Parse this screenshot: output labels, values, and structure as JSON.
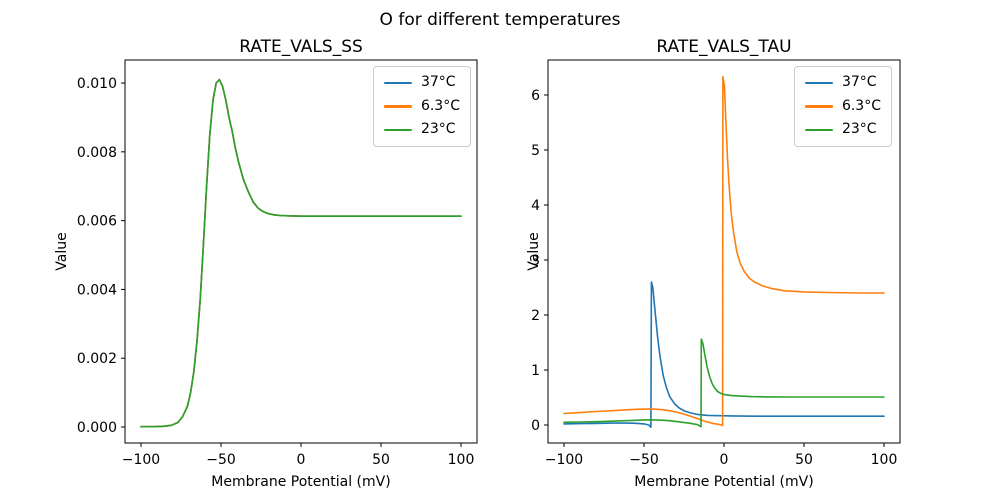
{
  "figure": {
    "suptitle": "O for different temperatures",
    "background": "#ffffff"
  },
  "colors": {
    "blue": "#1f77b4",
    "orange": "#ff7f0e",
    "green": "#2ca02c"
  },
  "chart_data": [
    {
      "type": "line",
      "title": "RATE_VALS_SS",
      "xlabel": "Membrane Potential (mV)",
      "ylabel": "Value",
      "xlim": [
        -110,
        110
      ],
      "ylim": [
        -0.000465,
        0.01067
      ],
      "grid": false,
      "legend_position": "upper right",
      "x_ticks": [
        {
          "v": -100,
          "label": "−100"
        },
        {
          "v": -50,
          "label": "−50"
        },
        {
          "v": 0,
          "label": "0"
        },
        {
          "v": 50,
          "label": "50"
        },
        {
          "v": 100,
          "label": "100"
        }
      ],
      "y_ticks": [
        {
          "v": 0.0,
          "label": "0.000"
        },
        {
          "v": 0.002,
          "label": "0.002"
        },
        {
          "v": 0.004,
          "label": "0.004"
        },
        {
          "v": 0.006,
          "label": "0.006"
        },
        {
          "v": 0.008,
          "label": "0.008"
        },
        {
          "v": 0.01,
          "label": "0.010"
        }
      ],
      "series": [
        {
          "name": "37°C",
          "color": "#1f77b4",
          "points": [
            [
              -100,
              1e-05
            ],
            [
              -92,
              1e-05
            ],
            [
              -86,
              2e-05
            ],
            [
              -81,
              5e-05
            ],
            [
              -77,
              0.00013
            ],
            [
              -74,
              0.0003
            ],
            [
              -71,
              0.0006
            ],
            [
              -69,
              0.001
            ],
            [
              -67,
              0.0016
            ],
            [
              -65,
              0.0025
            ],
            [
              -63,
              0.0037
            ],
            [
              -61,
              0.0053
            ],
            [
              -59,
              0.007
            ],
            [
              -57,
              0.0085
            ],
            [
              -55,
              0.0095
            ],
            [
              -53,
              0.01
            ],
            [
              -51,
              0.0101
            ],
            [
              -49,
              0.0099
            ],
            [
              -47,
              0.0095
            ],
            [
              -45,
              0.009
            ],
            [
              -43,
              0.0086
            ],
            [
              -41,
              0.0081
            ],
            [
              -39,
              0.0077
            ],
            [
              -36,
              0.0072
            ],
            [
              -33,
              0.00685
            ],
            [
              -30,
              0.00655
            ],
            [
              -27,
              0.00637
            ],
            [
              -24,
              0.00627
            ],
            [
              -21,
              0.00621
            ],
            [
              -17,
              0.00617
            ],
            [
              -13,
              0.00615
            ],
            [
              -8,
              0.00614
            ],
            [
              0,
              0.00613
            ],
            [
              15,
              0.00613
            ],
            [
              40,
              0.00613
            ],
            [
              70,
              0.00613
            ],
            [
              100,
              0.00613
            ]
          ]
        },
        {
          "name": "6.3°C",
          "color": "#ff7f0e",
          "points": [
            [
              -100,
              1e-05
            ],
            [
              -92,
              1e-05
            ],
            [
              -86,
              2e-05
            ],
            [
              -81,
              5e-05
            ],
            [
              -77,
              0.00013
            ],
            [
              -74,
              0.0003
            ],
            [
              -71,
              0.0006
            ],
            [
              -69,
              0.001
            ],
            [
              -67,
              0.0016
            ],
            [
              -65,
              0.0025
            ],
            [
              -63,
              0.0037
            ],
            [
              -61,
              0.0053
            ],
            [
              -59,
              0.007
            ],
            [
              -57,
              0.0085
            ],
            [
              -55,
              0.0095
            ],
            [
              -53,
              0.01
            ],
            [
              -51,
              0.0101
            ],
            [
              -49,
              0.0099
            ],
            [
              -47,
              0.0095
            ],
            [
              -45,
              0.009
            ],
            [
              -43,
              0.0086
            ],
            [
              -41,
              0.0081
            ],
            [
              -39,
              0.0077
            ],
            [
              -36,
              0.0072
            ],
            [
              -33,
              0.00685
            ],
            [
              -30,
              0.00655
            ],
            [
              -27,
              0.00637
            ],
            [
              -24,
              0.00627
            ],
            [
              -21,
              0.00621
            ],
            [
              -17,
              0.00617
            ],
            [
              -13,
              0.00615
            ],
            [
              -8,
              0.00614
            ],
            [
              0,
              0.00613
            ],
            [
              15,
              0.00613
            ],
            [
              40,
              0.00613
            ],
            [
              70,
              0.00613
            ],
            [
              100,
              0.00613
            ]
          ]
        },
        {
          "name": "23°C",
          "color": "#2ca02c",
          "points": [
            [
              -100,
              1e-05
            ],
            [
              -92,
              1e-05
            ],
            [
              -86,
              2e-05
            ],
            [
              -81,
              5e-05
            ],
            [
              -77,
              0.00013
            ],
            [
              -74,
              0.0003
            ],
            [
              -71,
              0.0006
            ],
            [
              -69,
              0.001
            ],
            [
              -67,
              0.0016
            ],
            [
              -65,
              0.0025
            ],
            [
              -63,
              0.0037
            ],
            [
              -61,
              0.0053
            ],
            [
              -59,
              0.007
            ],
            [
              -57,
              0.0085
            ],
            [
              -55,
              0.0095
            ],
            [
              -53,
              0.01
            ],
            [
              -51,
              0.0101
            ],
            [
              -49,
              0.0099
            ],
            [
              -47,
              0.0095
            ],
            [
              -45,
              0.009
            ],
            [
              -43,
              0.0086
            ],
            [
              -41,
              0.0081
            ],
            [
              -39,
              0.0077
            ],
            [
              -36,
              0.0072
            ],
            [
              -33,
              0.00685
            ],
            [
              -30,
              0.00655
            ],
            [
              -27,
              0.00637
            ],
            [
              -24,
              0.00627
            ],
            [
              -21,
              0.00621
            ],
            [
              -17,
              0.00617
            ],
            [
              -13,
              0.00615
            ],
            [
              -8,
              0.00614
            ],
            [
              0,
              0.00613
            ],
            [
              15,
              0.00613
            ],
            [
              40,
              0.00613
            ],
            [
              70,
              0.00613
            ],
            [
              100,
              0.00613
            ]
          ]
        }
      ]
    },
    {
      "type": "line",
      "title": "RATE_VALS_TAU",
      "xlabel": "Membrane Potential (mV)",
      "ylabel": "Value",
      "xlim": [
        -110,
        110
      ],
      "ylim": [
        -0.327,
        6.636
      ],
      "grid": false,
      "legend_position": "upper right",
      "x_ticks": [
        {
          "v": -100,
          "label": "−100"
        },
        {
          "v": -50,
          "label": "−50"
        },
        {
          "v": 0,
          "label": "0"
        },
        {
          "v": 50,
          "label": "50"
        },
        {
          "v": 100,
          "label": "100"
        }
      ],
      "y_ticks": [
        {
          "v": 0,
          "label": "0"
        },
        {
          "v": 1,
          "label": "1"
        },
        {
          "v": 2,
          "label": "2"
        },
        {
          "v": 3,
          "label": "3"
        },
        {
          "v": 4,
          "label": "4"
        },
        {
          "v": 5,
          "label": "5"
        },
        {
          "v": 6,
          "label": "6"
        }
      ],
      "series": [
        {
          "name": "37°C",
          "color": "#1f77b4",
          "points": [
            [
              -100,
              0.02
            ],
            [
              -90,
              0.025
            ],
            [
              -80,
              0.03
            ],
            [
              -70,
              0.035
            ],
            [
              -60,
              0.035
            ],
            [
              -54,
              0.03
            ],
            [
              -50,
              0.02
            ],
            [
              -47,
              0.0
            ],
            [
              -45.7,
              -0.04
            ],
            [
              -45.4,
              2.6
            ],
            [
              -44.5,
              2.5
            ],
            [
              -43,
              2.05
            ],
            [
              -41.5,
              1.6
            ],
            [
              -40,
              1.25
            ],
            [
              -38,
              0.9
            ],
            [
              -36,
              0.68
            ],
            [
              -34,
              0.52
            ],
            [
              -31,
              0.39
            ],
            [
              -28,
              0.31
            ],
            [
              -25,
              0.26
            ],
            [
              -21,
              0.22
            ],
            [
              -16,
              0.19
            ],
            [
              -10,
              0.175
            ],
            [
              -3,
              0.17
            ],
            [
              5,
              0.165
            ],
            [
              20,
              0.16
            ],
            [
              50,
              0.16
            ],
            [
              100,
              0.16
            ]
          ]
        },
        {
          "name": "6.3°C",
          "color": "#ff7f0e",
          "points": [
            [
              -100,
              0.21
            ],
            [
              -90,
              0.225
            ],
            [
              -80,
              0.245
            ],
            [
              -70,
              0.26
            ],
            [
              -62,
              0.275
            ],
            [
              -55,
              0.285
            ],
            [
              -49,
              0.29
            ],
            [
              -44,
              0.29
            ],
            [
              -39,
              0.28
            ],
            [
              -34,
              0.26
            ],
            [
              -29,
              0.23
            ],
            [
              -24,
              0.19
            ],
            [
              -19,
              0.14
            ],
            [
              -15,
              0.1
            ],
            [
              -11,
              0.06
            ],
            [
              -7,
              0.03
            ],
            [
              -4,
              0.015
            ],
            [
              -1.5,
              0.0
            ],
            [
              -0.9,
              -0.01
            ],
            [
              -0.7,
              6.33
            ],
            [
              0.3,
              6.15
            ],
            [
              1.2,
              5.5
            ],
            [
              2.2,
              4.85
            ],
            [
              3.2,
              4.35
            ],
            [
              4.5,
              3.85
            ],
            [
              6,
              3.5
            ],
            [
              8,
              3.15
            ],
            [
              10,
              2.95
            ],
            [
              12.5,
              2.8
            ],
            [
              15.5,
              2.68
            ],
            [
              19,
              2.6
            ],
            [
              24,
              2.53
            ],
            [
              30,
              2.48
            ],
            [
              38,
              2.44
            ],
            [
              50,
              2.42
            ],
            [
              65,
              2.41
            ],
            [
              85,
              2.4
            ],
            [
              100,
              2.4
            ]
          ]
        },
        {
          "name": "23°C",
          "color": "#2ca02c",
          "points": [
            [
              -100,
              0.05
            ],
            [
              -90,
              0.055
            ],
            [
              -80,
              0.06
            ],
            [
              -70,
              0.07
            ],
            [
              -60,
              0.08
            ],
            [
              -52,
              0.09
            ],
            [
              -46,
              0.095
            ],
            [
              -40,
              0.09
            ],
            [
              -35,
              0.08
            ],
            [
              -30,
              0.065
            ],
            [
              -26,
              0.05
            ],
            [
              -22,
              0.035
            ],
            [
              -19,
              0.02
            ],
            [
              -16.5,
              0.005
            ],
            [
              -15,
              -0.02
            ],
            [
              -14.4,
              -0.03
            ],
            [
              -14.2,
              1.56
            ],
            [
              -13.2,
              1.48
            ],
            [
              -12,
              1.28
            ],
            [
              -10.5,
              1.05
            ],
            [
              -9,
              0.88
            ],
            [
              -7.5,
              0.76
            ],
            [
              -6,
              0.68
            ],
            [
              -4,
              0.61
            ],
            [
              -2,
              0.575
            ],
            [
              1,
              0.55
            ],
            [
              5,
              0.535
            ],
            [
              10,
              0.525
            ],
            [
              17,
              0.517
            ],
            [
              27,
              0.512
            ],
            [
              40,
              0.51
            ],
            [
              65,
              0.51
            ],
            [
              100,
              0.51
            ]
          ]
        }
      ]
    }
  ]
}
